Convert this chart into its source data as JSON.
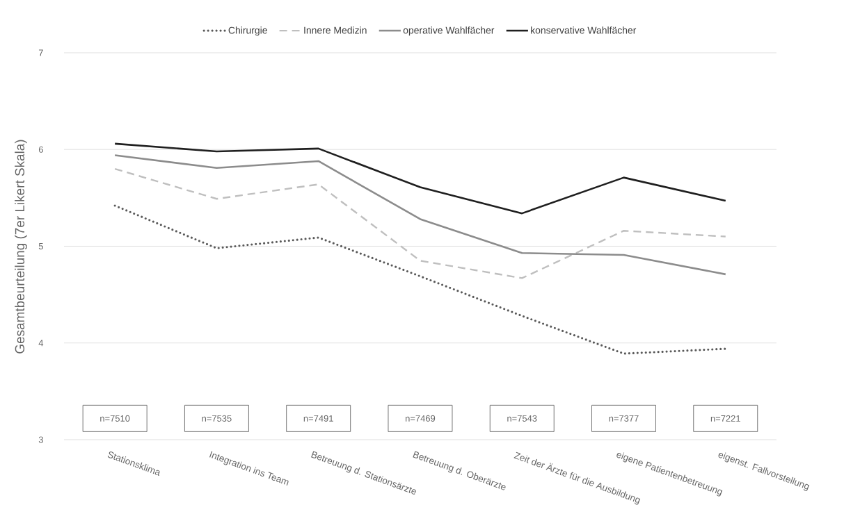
{
  "chart_data": {
    "type": "line",
    "ylabel": "Gesamtbeurteilung (7er Likert Skala)",
    "categories": [
      "Stationsklima",
      "Integration ins Team",
      "Betreuung d. Stationsärzte",
      "Betreuung d. Oberärzte",
      "Zeit der Ärzte für die Ausbildung",
      "eigene Patientenbetreuung",
      "eigenst. Fallvorstellung"
    ],
    "series": [
      {
        "name": "Chirurgie",
        "color": "#595959",
        "line_style": "dotted",
        "values": [
          5.42,
          4.98,
          5.09,
          4.69,
          4.28,
          3.89,
          3.94
        ]
      },
      {
        "name": "Innere Medizin",
        "color": "#bfbfbf",
        "line_style": "dashed",
        "values": [
          5.8,
          5.49,
          5.64,
          4.85,
          4.67,
          5.16,
          5.1
        ]
      },
      {
        "name": "operative Wahlfächer",
        "color": "#8c8c8c",
        "line_style": "solid",
        "values": [
          5.94,
          5.81,
          5.88,
          5.28,
          4.93,
          4.91,
          4.71
        ]
      },
      {
        "name": "konservative Wahlfächer",
        "color": "#1f1f1f",
        "line_style": "solid",
        "values": [
          6.06,
          5.98,
          6.01,
          5.61,
          5.34,
          5.71,
          5.47
        ]
      }
    ],
    "ylim": [
      3,
      7
    ],
    "yticks": [
      3,
      4,
      5,
      6,
      7
    ],
    "grid": "y",
    "legend": "top",
    "annotations": [
      "n=7510",
      "n=7535",
      "n=7491",
      "n=7469",
      "n=7543",
      "n=7377",
      "n=7221"
    ]
  }
}
